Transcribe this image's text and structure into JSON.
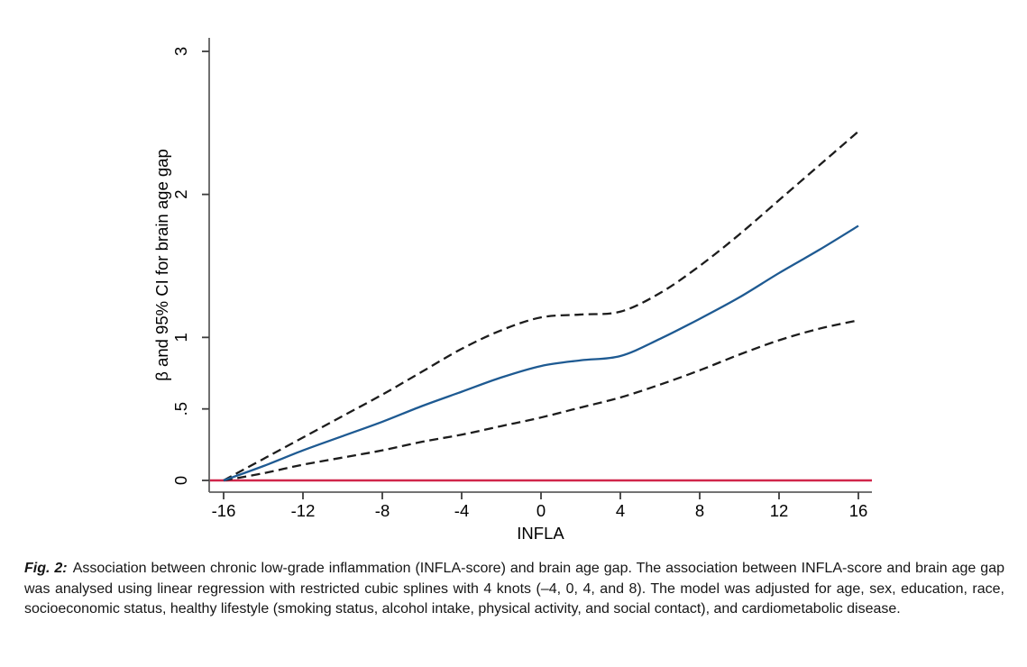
{
  "figure": {
    "caption": {
      "label": "Fig. 2:",
      "text": "Association between chronic low-grade inflammation (INFLA-score) and brain age gap. The association between INFLA-score and brain age gap was analysed using linear regression with restricted cubic splines with 4 knots (–4, 0, 4, and 8). The model was adjusted for age, sex, education, race, socioeconomic status, healthy lifestyle (smoking status, alcohol intake, physical activity, and social contact), and cardiometabolic disease."
    }
  },
  "chart_data": {
    "type": "line",
    "title": "",
    "xlabel": "INFLA",
    "ylabel": "β and 95% CI for brain age gap",
    "x_ticks": [
      -16,
      -12,
      -8,
      -4,
      0,
      4,
      8,
      12,
      16
    ],
    "x_tick_labels": [
      "-16",
      "-12",
      "-8",
      "-4",
      "0",
      "4",
      "8",
      "12",
      "16"
    ],
    "y_ticks": [
      0,
      0.5,
      1,
      2,
      3
    ],
    "y_tick_labels": [
      "0",
      ".5",
      "1",
      "2",
      "3"
    ],
    "x_range": [
      -16,
      16
    ],
    "y_range": [
      0,
      3
    ],
    "grid": false,
    "legend": "none",
    "knots": [
      -4,
      0,
      4,
      8
    ],
    "reference_line": {
      "y": 0,
      "color": "#d0264a"
    },
    "x": [
      -16,
      -14,
      -12,
      -10,
      -8,
      -6,
      -4,
      -2,
      0,
      2,
      4,
      6,
      8,
      10,
      12,
      14,
      16
    ],
    "series": [
      {
        "name": "ci_upper",
        "label": "95% CI upper bound",
        "style": "dashed",
        "color": "#1c1c1c",
        "values": [
          0,
          0.15,
          0.3,
          0.45,
          0.6,
          0.76,
          0.92,
          1.05,
          1.14,
          1.16,
          1.18,
          1.31,
          1.5,
          1.72,
          1.96,
          2.2,
          2.44
        ]
      },
      {
        "name": "ci_lower",
        "label": "95% CI lower bound",
        "style": "dashed",
        "color": "#1c1c1c",
        "values": [
          0,
          0.05,
          0.11,
          0.16,
          0.21,
          0.27,
          0.32,
          0.38,
          0.44,
          0.51,
          0.58,
          0.67,
          0.77,
          0.88,
          0.98,
          1.06,
          1.12
        ]
      },
      {
        "name": "beta",
        "label": "β (point estimate)",
        "style": "solid",
        "color": "#1e5a92",
        "values": [
          0,
          0.1,
          0.21,
          0.31,
          0.41,
          0.52,
          0.62,
          0.72,
          0.8,
          0.84,
          0.87,
          0.99,
          1.13,
          1.28,
          1.45,
          1.61,
          1.78
        ]
      }
    ],
    "colors": {
      "axis": "#5f5f5f",
      "tick": "#3c3c3c",
      "reference": "#d0264a",
      "estimate": "#1e5a92",
      "ci": "#1c1c1c"
    }
  }
}
